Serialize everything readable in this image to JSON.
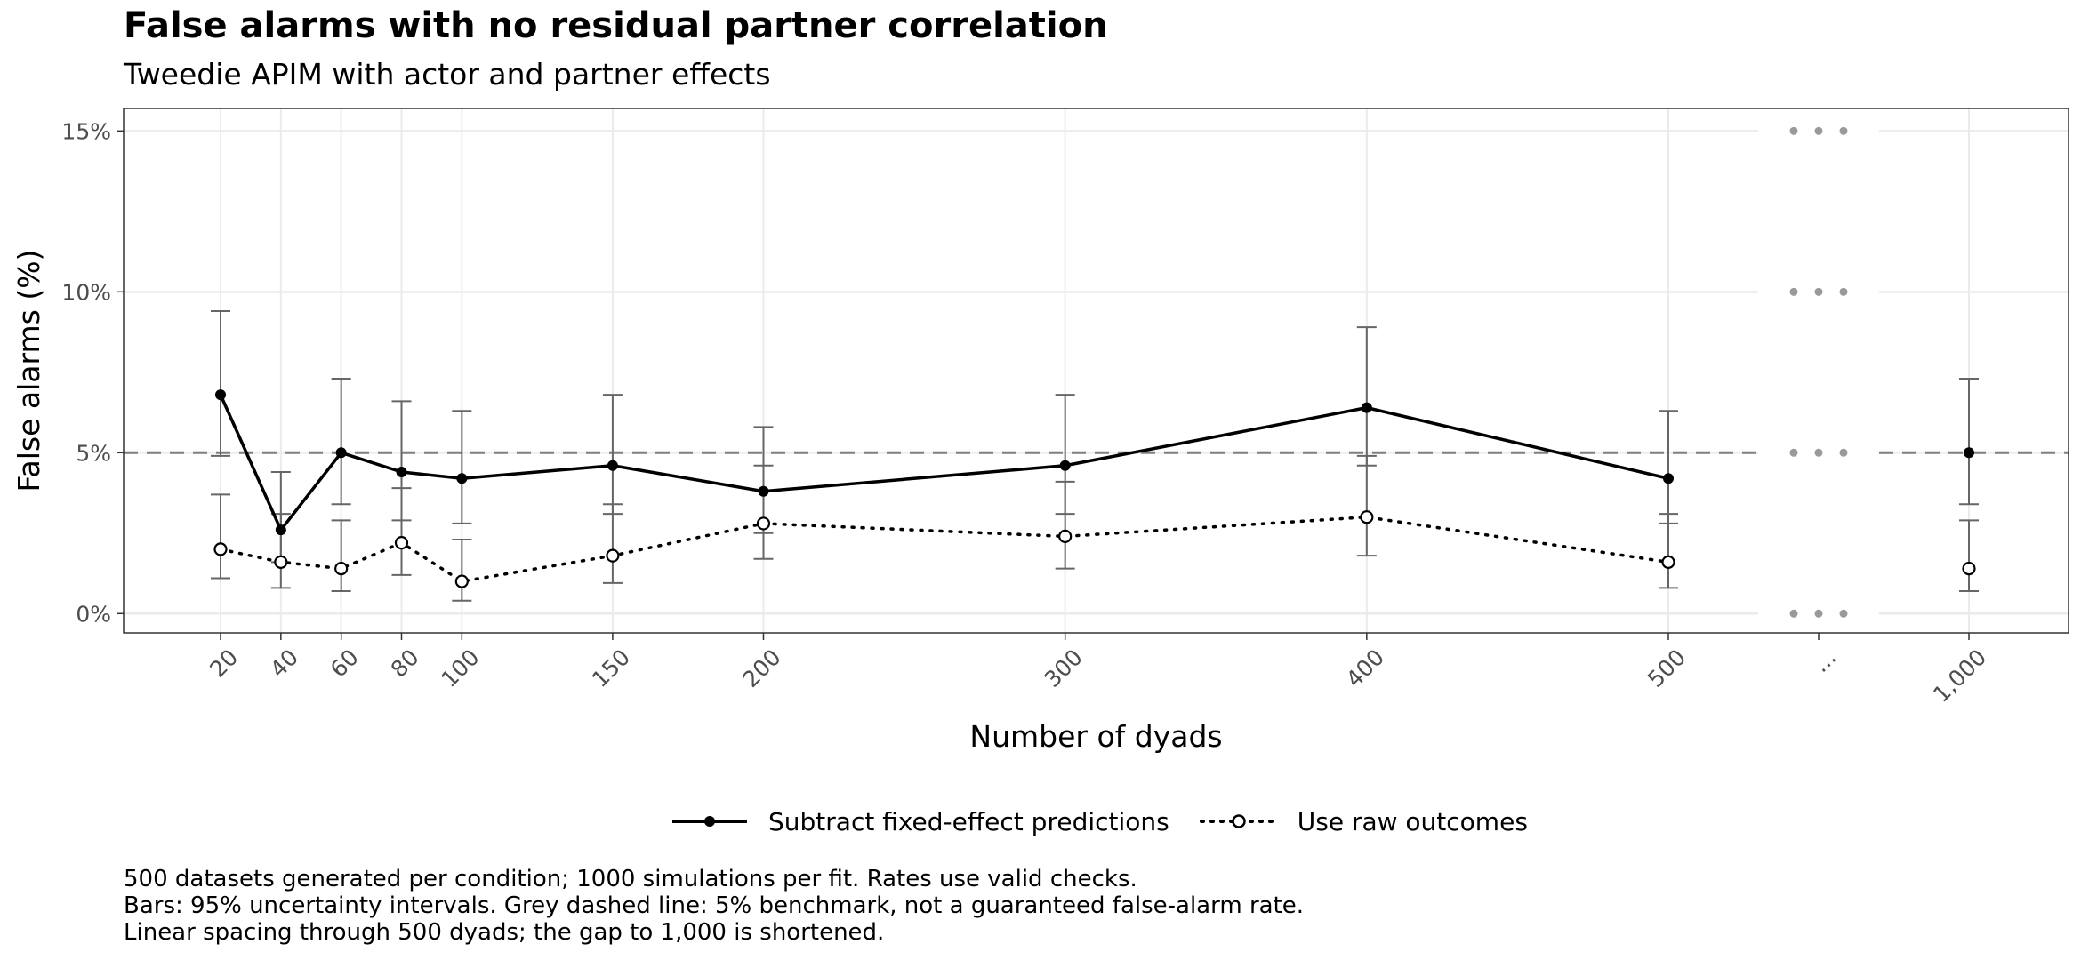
{
  "title": "False alarms with no residual partner correlation",
  "subtitle": "Tweedie APIM with actor and partner effects",
  "caption": [
    "500 datasets generated per condition; 1000 simulations per fit. Rates use valid checks.",
    "Bars: 95% uncertainty intervals. Grey dashed line: 5% benchmark, not a guaranteed false-alarm rate.",
    "Linear spacing through 500 dyads; the gap to 1,000 is shortened."
  ],
  "colors": {
    "series": "#000000",
    "error_bar": "#666666",
    "benchmark": "#7f7f7f",
    "grid": "#ebebeb",
    "break_dots": "#999999"
  },
  "chart_data": {
    "type": "line",
    "xlabel": "Number of dyads",
    "ylabel": "False alarms (%)",
    "ylim": [
      -0.6,
      15.7
    ],
    "yticks": [
      0,
      5,
      10,
      15
    ],
    "ytick_labels": [
      "0%",
      "5%",
      "10%",
      "15%"
    ],
    "x_categories": [
      "20",
      "40",
      "60",
      "80",
      "100",
      "150",
      "200",
      "300",
      "400",
      "500",
      "...",
      "1,000"
    ],
    "x_numeric": [
      20,
      40,
      60,
      80,
      100,
      150,
      200,
      300,
      400,
      500,
      null,
      1000
    ],
    "axis_break": "...",
    "reference_line": {
      "y": 5,
      "style": "dashed",
      "color": "#7f7f7f"
    },
    "grid": true,
    "legend_position": "bottom",
    "series": [
      {
        "name": "Subtract fixed-effect predictions",
        "line": "solid",
        "marker": "filled-circle",
        "values": [
          6.8,
          2.6,
          5.0,
          4.4,
          4.2,
          4.6,
          3.8,
          4.6,
          6.4,
          4.2,
          null,
          5.0
        ],
        "lower": [
          4.9,
          1.6,
          3.4,
          2.9,
          2.8,
          3.1,
          2.5,
          3.1,
          4.6,
          2.8,
          null,
          3.4
        ],
        "upper": [
          9.4,
          4.4,
          7.3,
          6.6,
          6.3,
          6.8,
          5.8,
          6.8,
          8.9,
          6.3,
          null,
          7.3
        ]
      },
      {
        "name": "Use raw outcomes",
        "line": "dotted",
        "marker": "open-circle",
        "values": [
          2.0,
          1.6,
          1.4,
          2.2,
          1.0,
          1.8,
          2.8,
          2.4,
          3.0,
          1.6,
          null,
          1.4
        ],
        "lower": [
          1.1,
          0.8,
          0.7,
          1.2,
          0.4,
          0.95,
          1.7,
          1.4,
          1.8,
          0.8,
          null,
          0.7
        ],
        "upper": [
          3.7,
          3.1,
          2.9,
          3.9,
          2.3,
          3.4,
          4.6,
          4.1,
          4.9,
          3.1,
          null,
          2.9
        ]
      }
    ]
  }
}
